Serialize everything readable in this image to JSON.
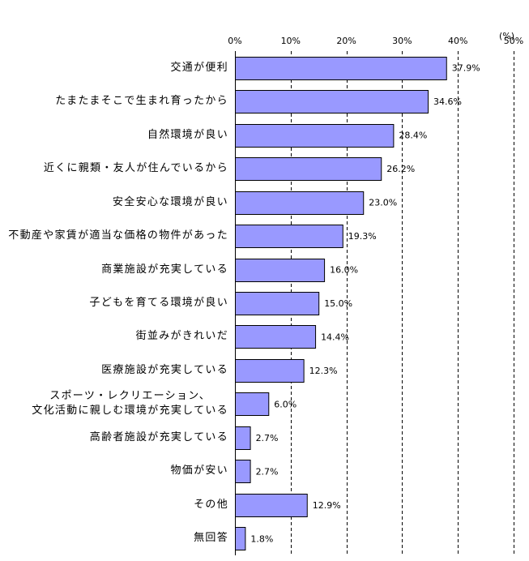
{
  "chart_data": {
    "type": "bar",
    "orientation": "horizontal",
    "categories": [
      "交通が便利",
      "たまたまそこで生まれ育ったから",
      "自然環境が良い",
      "近くに親類・友人が住んでいるから",
      "安全安心な環境が良い",
      "不動産や家賃が適当な価格の物件があった",
      "商業施設が充実している",
      "子どもを育てる環境が良い",
      "街並みがきれいだ",
      "医療施設が充実している",
      "スポーツ・レクリエーション、\n文化活動に親しむ環境が充実している",
      "高齢者施設が充実している",
      "物価が安い",
      "その他",
      "無回答"
    ],
    "values": [
      37.9,
      34.6,
      28.4,
      26.2,
      23.0,
      19.3,
      16.0,
      15.0,
      14.4,
      12.3,
      6.0,
      2.7,
      2.7,
      12.9,
      1.8
    ],
    "data_labels": [
      "37.9%",
      "34.6%",
      "28.4%",
      "26.2%",
      "23.0%",
      "19.3%",
      "16.0%",
      "15.0%",
      "14.4%",
      "12.3%",
      "6.0%",
      "2.7%",
      "2.7%",
      "12.9%",
      "1.8%"
    ],
    "ticks": [
      0,
      10,
      20,
      30,
      40,
      50
    ],
    "tick_labels": [
      "0%",
      "10%",
      "20%",
      "30%",
      "40%",
      "50%"
    ],
    "xlim": [
      0,
      50
    ],
    "unit": "(%)",
    "grid": true
  },
  "colors": {
    "bar_fill": "#9999FF",
    "bar_edge": "#000000",
    "gridline": "#000000",
    "background": "#FFFFFF"
  }
}
